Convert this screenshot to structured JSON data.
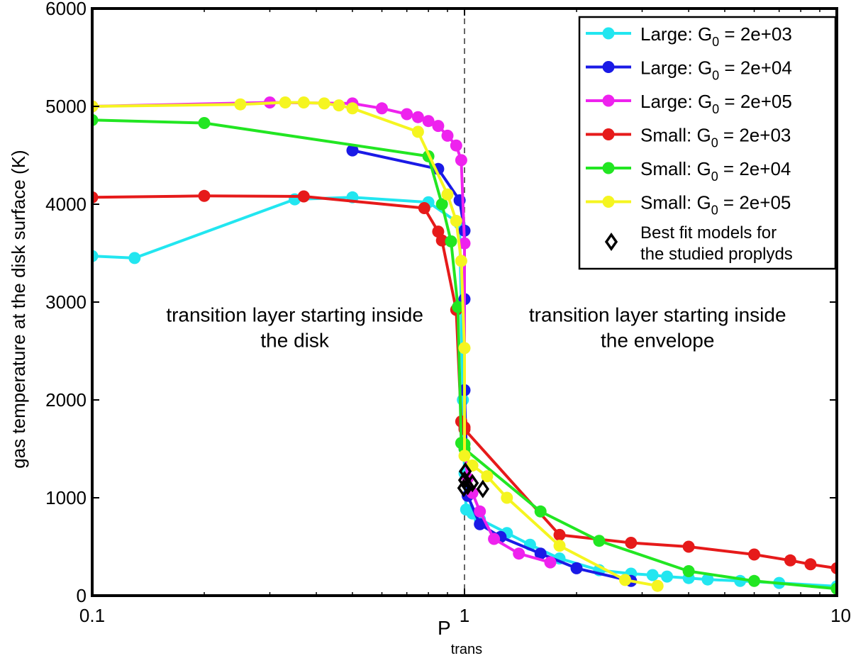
{
  "chart_data": {
    "type": "line",
    "x_scale": "log",
    "xlim": [
      0.1,
      10
    ],
    "ylim": [
      0,
      6000
    ],
    "xlabel": "P",
    "xlabel_sub": "trans",
    "ylabel": "gas temperature at the disk surface (K)",
    "x_ticks": [
      {
        "value": 0.1,
        "label": "0.1"
      },
      {
        "value": 1,
        "label": "1"
      },
      {
        "value": 10,
        "label": "10"
      }
    ],
    "y_ticks": [
      {
        "value": 0,
        "label": "0"
      },
      {
        "value": 1000,
        "label": "1000"
      },
      {
        "value": 2000,
        "label": "2000"
      },
      {
        "value": 3000,
        "label": "3000"
      },
      {
        "value": 4000,
        "label": "4000"
      },
      {
        "value": 5000,
        "label": "5000"
      },
      {
        "value": 6000,
        "label": "6000"
      }
    ],
    "vline_x": 1,
    "annotations": [
      {
        "lines": [
          "transition layer starting inside",
          "the disk"
        ],
        "x": 0.35,
        "y": 2800
      },
      {
        "lines": [
          "transition layer starting inside",
          "the envelope"
        ],
        "x": 3.3,
        "y": 2800
      }
    ],
    "legend": {
      "placement": "top-right",
      "best_fit_lines": [
        "Best fit models for",
        "the studied proplyds"
      ]
    },
    "series": [
      {
        "name": "Large: G0 = 2e+03",
        "label_pre": "Large: G",
        "label_sub": "0",
        "label_post": " = 2e+03",
        "color": "#22e6f0",
        "x": [
          0.1,
          0.13,
          0.35,
          0.5,
          0.8,
          0.97,
          0.99,
          1.0,
          1.01,
          1.05,
          1.1,
          1.3,
          1.5,
          1.8,
          2.3,
          2.8,
          3.2,
          3.5,
          4.0,
          4.5,
          5.5,
          7.0,
          10.0
        ],
        "y": [
          3470,
          3450,
          4050,
          4070,
          4020,
          3800,
          2000,
          1250,
          880,
          840,
          780,
          640,
          520,
          380,
          260,
          225,
          210,
          195,
          180,
          165,
          150,
          130,
          95
        ]
      },
      {
        "name": "Large: G0 = 2e+04",
        "label_pre": "Large: G",
        "label_sub": "0",
        "label_post": " = 2e+04",
        "color": "#1a1ae6",
        "x": [
          0.5,
          0.85,
          0.97,
          1.0,
          1.0,
          1.0,
          1.02,
          1.1,
          1.25,
          1.6,
          2.0,
          2.8
        ],
        "y": [
          4550,
          4360,
          4040,
          3730,
          3030,
          2100,
          1020,
          730,
          600,
          430,
          280,
          150
        ]
      },
      {
        "name": "Large: G0 = 2e+05",
        "label_pre": "Large: G",
        "label_sub": "0",
        "label_post": " = 2e+05",
        "color": "#ee22ee",
        "x": [
          0.1,
          0.3,
          0.5,
          0.6,
          0.7,
          0.75,
          0.8,
          0.85,
          0.9,
          0.95,
          0.98,
          1.0,
          1.0,
          1.02,
          1.05,
          1.1,
          1.2,
          1.4,
          1.7
        ],
        "y": [
          5000,
          5040,
          5030,
          4980,
          4920,
          4890,
          4850,
          4800,
          4700,
          4600,
          4450,
          3600,
          1500,
          1200,
          1050,
          860,
          580,
          430,
          340
        ]
      },
      {
        "name": "Small: G0 = 2e+03",
        "label_pre": "Small: G",
        "label_sub": "0",
        "label_post": " = 2e+03",
        "color": "#e61a1a",
        "x": [
          0.1,
          0.2,
          0.37,
          0.78,
          0.85,
          0.87,
          0.95,
          0.98,
          1.0,
          1.0,
          1.8,
          2.8,
          4.0,
          6.0,
          7.5,
          8.5,
          10.0
        ],
        "y": [
          4070,
          4085,
          4080,
          3960,
          3720,
          3630,
          2920,
          1780,
          1720,
          1700,
          620,
          540,
          500,
          420,
          360,
          320,
          280
        ]
      },
      {
        "name": "Small: G0 = 2e+04",
        "label_pre": "Small: G",
        "label_sub": "0",
        "label_post": " = 2e+04",
        "color": "#22e622",
        "x": [
          0.1,
          0.2,
          0.8,
          0.87,
          0.92,
          0.96,
          0.98,
          1.0,
          1.0,
          1.6,
          2.3,
          4.0,
          6.0,
          10.0
        ],
        "y": [
          4860,
          4830,
          4490,
          4000,
          3620,
          2950,
          1560,
          1550,
          1500,
          860,
          560,
          250,
          150,
          70
        ]
      },
      {
        "name": "Small: G0 = 2e+05",
        "label_pre": "Small: G",
        "label_sub": "0",
        "label_post": " = 2e+05",
        "color": "#f5f520",
        "x": [
          0.1,
          0.25,
          0.33,
          0.37,
          0.42,
          0.46,
          0.5,
          0.75,
          0.9,
          0.95,
          0.98,
          1.0,
          1.0,
          1.05,
          1.15,
          1.3,
          1.8,
          2.7,
          3.3
        ],
        "y": [
          5000,
          5020,
          5040,
          5040,
          5030,
          5010,
          4980,
          4740,
          4100,
          3830,
          3420,
          2530,
          1430,
          1330,
          1220,
          1000,
          510,
          160,
          100
        ]
      }
    ],
    "best_fit_points": {
      "x": [
        0.995,
        1.0,
        1.005,
        1.02,
        1.05,
        1.12
      ],
      "y": [
        1100,
        1180,
        1270,
        1120,
        1150,
        1090
      ]
    }
  }
}
